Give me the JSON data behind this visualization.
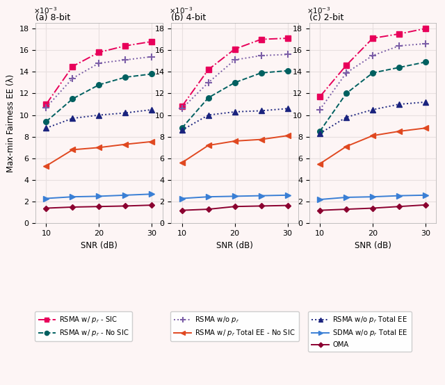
{
  "snr": [
    10,
    15,
    20,
    25,
    30
  ],
  "panels": [
    {
      "title": "(a) 8-bit",
      "series": {
        "rsma_sic": [
          11.0,
          14.5,
          15.8,
          16.4,
          16.8
        ],
        "rsma_wo_pr": [
          10.7,
          13.4,
          14.8,
          15.1,
          15.4
        ],
        "rsma_no_sic": [
          9.4,
          11.5,
          12.8,
          13.5,
          13.8
        ],
        "rsma_wo_total": [
          8.8,
          9.7,
          10.0,
          10.2,
          10.5
        ],
        "rsma_pr_total_nosic": [
          5.3,
          6.8,
          7.0,
          7.3,
          7.55
        ],
        "sdma_total": [
          2.3,
          2.45,
          2.5,
          2.6,
          2.7
        ],
        "oma": [
          1.4,
          1.5,
          1.55,
          1.6,
          1.68
        ]
      }
    },
    {
      "title": "(b) 4-bit",
      "series": {
        "rsma_sic": [
          10.8,
          14.2,
          16.1,
          17.0,
          17.1
        ],
        "rsma_wo_pr": [
          10.6,
          13.0,
          15.1,
          15.5,
          15.6
        ],
        "rsma_no_sic": [
          8.8,
          11.6,
          13.0,
          13.9,
          14.1
        ],
        "rsma_wo_total": [
          8.6,
          10.0,
          10.3,
          10.4,
          10.6
        ],
        "rsma_pr_total_nosic": [
          5.6,
          7.2,
          7.6,
          7.75,
          8.1
        ],
        "sdma_total": [
          2.3,
          2.45,
          2.5,
          2.55,
          2.6
        ],
        "oma": [
          1.2,
          1.3,
          1.55,
          1.6,
          1.65
        ]
      }
    },
    {
      "title": "(c) 2-bit",
      "series": {
        "rsma_sic": [
          11.7,
          14.6,
          17.1,
          17.5,
          18.0
        ],
        "rsma_wo_pr": [
          10.5,
          13.9,
          15.5,
          16.4,
          16.6
        ],
        "rsma_no_sic": [
          8.5,
          12.0,
          13.9,
          14.4,
          14.9
        ],
        "rsma_wo_total": [
          8.3,
          9.8,
          10.5,
          11.0,
          11.2
        ],
        "rsma_pr_total_nosic": [
          5.5,
          7.1,
          8.1,
          8.5,
          8.8
        ],
        "sdma_total": [
          2.2,
          2.4,
          2.45,
          2.55,
          2.6
        ],
        "oma": [
          1.2,
          1.3,
          1.4,
          1.55,
          1.7
        ]
      }
    }
  ],
  "colors": {
    "rsma_sic": "#e8005a",
    "rsma_wo_pr": "#7b5ea7",
    "rsma_no_sic": "#006060",
    "rsma_wo_total": "#1a237e",
    "rsma_pr_total_nosic": "#e04820",
    "sdma_total": "#3a7fd5",
    "oma": "#8b0030"
  },
  "ylabel": "Max-min Fairness EE (λ)",
  "xlabel": "SNR (dB)",
  "bg_color": "#fdf5f5",
  "grid_color": "#e8e0e0"
}
